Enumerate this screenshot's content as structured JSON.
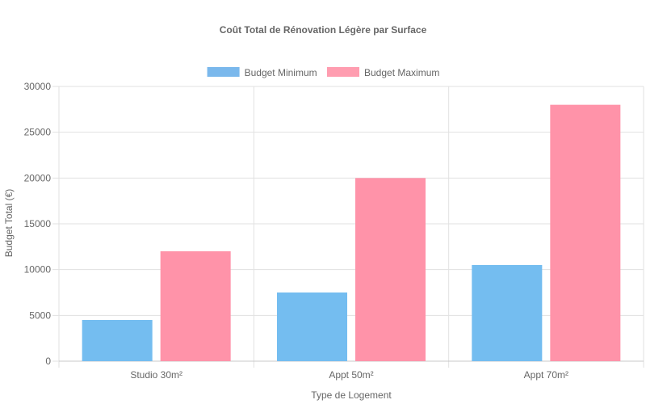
{
  "chart_data": {
    "type": "bar",
    "title": "Coût Total de Rénovation Légère par Surface",
    "xlabel": "Type de Logement",
    "ylabel": "Budget Total (€)",
    "categories": [
      "Studio 30m²",
      "Appt 50m²",
      "Appt 70m²"
    ],
    "series": [
      {
        "name": "Budget Minimum",
        "values": [
          4500,
          7500,
          10500
        ],
        "color": "#74bdf0",
        "legend_color": "#7ab8ec"
      },
      {
        "name": "Budget Maximum",
        "values": [
          12000,
          20000,
          28000
        ],
        "color": "#ff93a9",
        "legend_color": "#ff9db0"
      }
    ],
    "ylim": [
      0,
      30000
    ],
    "yticks": [
      "0",
      "5000",
      "10000",
      "15000",
      "20000",
      "25000",
      "30000"
    ],
    "grid": true,
    "legend_position": "top-center"
  }
}
